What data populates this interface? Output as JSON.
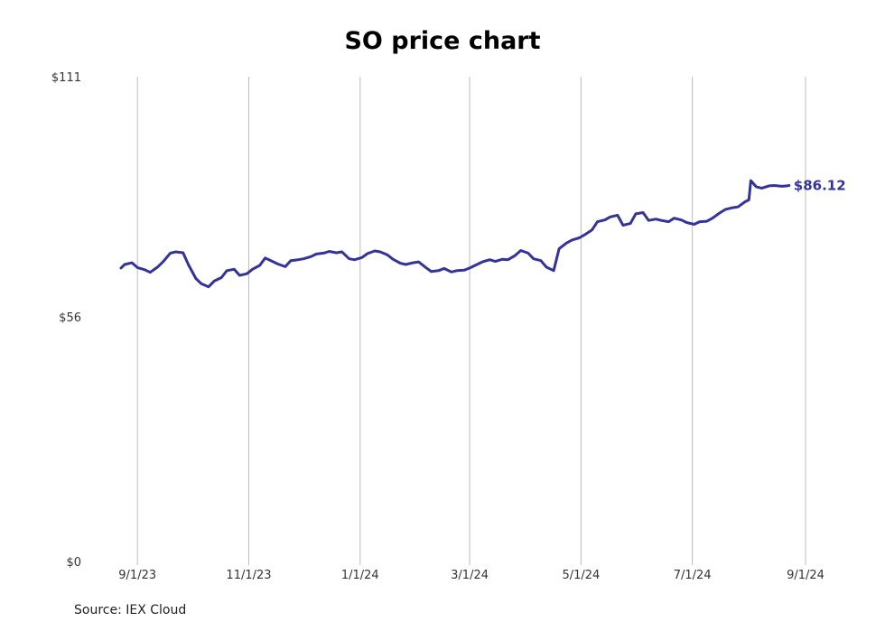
{
  "colors": {
    "series": "#33339a",
    "grid": "#bbbbbb"
  },
  "source": "Source: IEX Cloud",
  "chart_data": {
    "type": "line",
    "title": "SO price chart",
    "xlabel": "",
    "ylabel": "",
    "ylim": [
      0,
      111
    ],
    "xlim": [
      "2023-08-23",
      "2024-09-01"
    ],
    "y_ticks": [
      {
        "value": 0,
        "label": "$0"
      },
      {
        "value": 56,
        "label": "$56"
      },
      {
        "value": 111,
        "label": "$111"
      }
    ],
    "x_ticks": [
      {
        "value": "2023-09-01",
        "label": "9/1/23"
      },
      {
        "value": "2023-11-01",
        "label": "11/1/23"
      },
      {
        "value": "2024-01-01",
        "label": "1/1/24"
      },
      {
        "value": "2024-03-01",
        "label": "3/1/24"
      },
      {
        "value": "2024-05-01",
        "label": "5/1/24"
      },
      {
        "value": "2024-07-01",
        "label": "7/1/24"
      },
      {
        "value": "2024-09-01",
        "label": "9/1/24"
      }
    ],
    "grid": "vertical",
    "last_value_label": "$86.12",
    "series": [
      {
        "points": [
          [
            "2023-08-23",
            67.2
          ],
          [
            "2023-08-25",
            68.0
          ],
          [
            "2023-08-29",
            68.4
          ],
          [
            "2023-09-01",
            67.3
          ],
          [
            "2023-09-05",
            66.8
          ],
          [
            "2023-09-08",
            66.2
          ],
          [
            "2023-09-12",
            67.4
          ],
          [
            "2023-09-15",
            68.6
          ],
          [
            "2023-09-19",
            70.6
          ],
          [
            "2023-09-22",
            70.9
          ],
          [
            "2023-09-26",
            70.7
          ],
          [
            "2023-09-29",
            67.9
          ],
          [
            "2023-10-03",
            64.8
          ],
          [
            "2023-10-06",
            63.6
          ],
          [
            "2023-10-10",
            62.9
          ],
          [
            "2023-10-13",
            64.2
          ],
          [
            "2023-10-17",
            65.0
          ],
          [
            "2023-10-20",
            66.6
          ],
          [
            "2023-10-24",
            66.9
          ],
          [
            "2023-10-27",
            65.5
          ],
          [
            "2023-10-31",
            65.9
          ],
          [
            "2023-11-03",
            66.9
          ],
          [
            "2023-11-07",
            67.8
          ],
          [
            "2023-11-10",
            69.5
          ],
          [
            "2023-11-14",
            68.7
          ],
          [
            "2023-11-17",
            68.1
          ],
          [
            "2023-11-21",
            67.5
          ],
          [
            "2023-11-24",
            68.9
          ],
          [
            "2023-11-28",
            69.1
          ],
          [
            "2023-12-01",
            69.3
          ],
          [
            "2023-12-05",
            69.8
          ],
          [
            "2023-12-08",
            70.4
          ],
          [
            "2023-12-12",
            70.6
          ],
          [
            "2023-12-15",
            71.0
          ],
          [
            "2023-12-19",
            70.7
          ],
          [
            "2023-12-22",
            70.9
          ],
          [
            "2023-12-26",
            69.3
          ],
          [
            "2023-12-29",
            69.1
          ],
          [
            "2024-01-02",
            69.6
          ],
          [
            "2024-01-05",
            70.5
          ],
          [
            "2024-01-09",
            71.1
          ],
          [
            "2024-01-12",
            70.9
          ],
          [
            "2024-01-16",
            70.2
          ],
          [
            "2024-01-19",
            69.2
          ],
          [
            "2024-01-23",
            68.3
          ],
          [
            "2024-01-26",
            68.0
          ],
          [
            "2024-01-30",
            68.4
          ],
          [
            "2024-02-02",
            68.6
          ],
          [
            "2024-02-06",
            67.3
          ],
          [
            "2024-02-09",
            66.4
          ],
          [
            "2024-02-13",
            66.6
          ],
          [
            "2024-02-16",
            67.1
          ],
          [
            "2024-02-20",
            66.3
          ],
          [
            "2024-02-23",
            66.6
          ],
          [
            "2024-02-27",
            66.7
          ],
          [
            "2024-03-01",
            67.2
          ],
          [
            "2024-03-05",
            68.0
          ],
          [
            "2024-03-08",
            68.6
          ],
          [
            "2024-03-12",
            69.1
          ],
          [
            "2024-03-15",
            68.7
          ],
          [
            "2024-03-19",
            69.2
          ],
          [
            "2024-03-22",
            69.1
          ],
          [
            "2024-03-26",
            70.1
          ],
          [
            "2024-03-29",
            71.2
          ],
          [
            "2024-04-02",
            70.6
          ],
          [
            "2024-04-05",
            69.3
          ],
          [
            "2024-04-09",
            68.9
          ],
          [
            "2024-04-12",
            67.4
          ],
          [
            "2024-04-16",
            66.6
          ],
          [
            "2024-04-19",
            71.6
          ],
          [
            "2024-04-23",
            72.9
          ],
          [
            "2024-04-26",
            73.6
          ],
          [
            "2024-04-30",
            74.1
          ],
          [
            "2024-05-03",
            74.8
          ],
          [
            "2024-05-07",
            75.9
          ],
          [
            "2024-05-10",
            77.8
          ],
          [
            "2024-05-14",
            78.2
          ],
          [
            "2024-05-17",
            78.9
          ],
          [
            "2024-05-21",
            79.3
          ],
          [
            "2024-05-24",
            77.0
          ],
          [
            "2024-05-28",
            77.4
          ],
          [
            "2024-05-31",
            79.6
          ],
          [
            "2024-06-04",
            79.9
          ],
          [
            "2024-06-07",
            78.1
          ],
          [
            "2024-06-11",
            78.4
          ],
          [
            "2024-06-14",
            78.1
          ],
          [
            "2024-06-18",
            77.8
          ],
          [
            "2024-06-21",
            78.6
          ],
          [
            "2024-06-25",
            78.2
          ],
          [
            "2024-06-28",
            77.6
          ],
          [
            "2024-07-02",
            77.2
          ],
          [
            "2024-07-05",
            77.8
          ],
          [
            "2024-07-09",
            77.9
          ],
          [
            "2024-07-12",
            78.6
          ],
          [
            "2024-07-16",
            79.8
          ],
          [
            "2024-07-19",
            80.6
          ],
          [
            "2024-07-23",
            81.0
          ],
          [
            "2024-07-26",
            81.2
          ],
          [
            "2024-07-30",
            82.4
          ],
          [
            "2024-08-01",
            82.8
          ],
          [
            "2024-08-02",
            87.2
          ],
          [
            "2024-08-05",
            85.8
          ],
          [
            "2024-08-08",
            85.5
          ],
          [
            "2024-08-12",
            86.0
          ],
          [
            "2024-08-15",
            86.1
          ],
          [
            "2024-08-19",
            85.9
          ],
          [
            "2024-08-22",
            86.0
          ],
          [
            "2024-08-23",
            86.12
          ]
        ]
      }
    ]
  }
}
